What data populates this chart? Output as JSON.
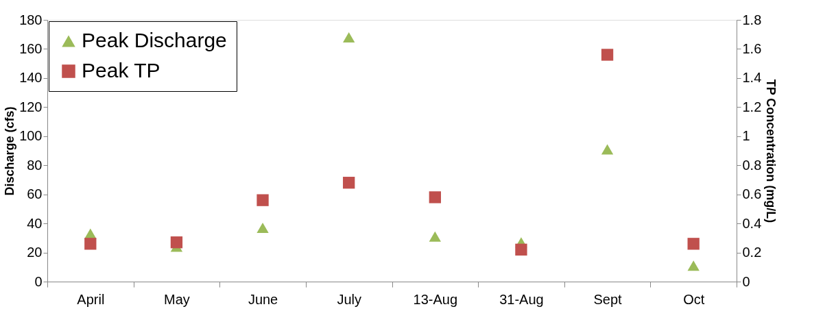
{
  "chart_data": {
    "type": "scatter",
    "categories": [
      "April",
      "May",
      "June",
      "July",
      "13-Aug",
      "31-Aug",
      "Sept",
      "Oct"
    ],
    "series": [
      {
        "name": "Peak Discharge",
        "color": "#9bbb59",
        "marker": "triangle",
        "values": [
          33,
          24,
          37,
          168,
          31,
          27,
          91,
          11
        ]
      },
      {
        "name": "Peak TP",
        "color": "#c0504d",
        "marker": "square",
        "axis": "y2",
        "values": [
          0.26,
          0.27,
          0.56,
          0.68,
          0.58,
          0.22,
          1.56,
          0.26
        ]
      }
    ],
    "ylabel": "Discharge (cfs)",
    "y2label": "TP Concentration (mg/L)",
    "ylim": [
      0,
      180
    ],
    "yticks": [
      0,
      20,
      40,
      60,
      80,
      100,
      120,
      140,
      160,
      180
    ],
    "y2lim": [
      0,
      1.8
    ],
    "y2ticks": [
      0,
      {
        "value": 0.2,
        "label": "0.2"
      },
      {
        "value": 0.4,
        "label": "0.4"
      },
      {
        "value": 0.6,
        "label": "0.6"
      },
      {
        "value": 0.8,
        "label": "0.8"
      },
      1,
      {
        "value": 1.2,
        "label": "1.2"
      },
      {
        "value": 1.4,
        "label": "1.4"
      },
      {
        "value": 1.6,
        "label": "1.6"
      },
      {
        "value": 1.8,
        "label": "1.8"
      }
    ],
    "grid": false,
    "legend": "top left"
  }
}
